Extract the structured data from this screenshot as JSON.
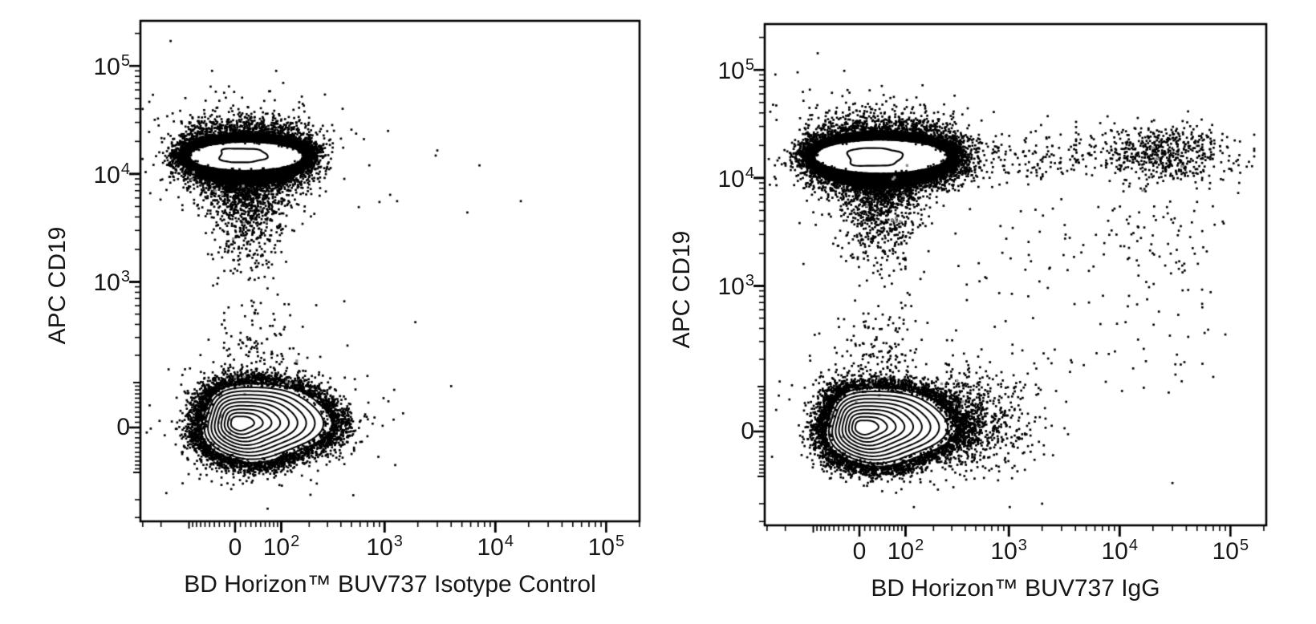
{
  "page": {
    "background": "#ffffff",
    "ink": "#000000",
    "gray_event_color": "#8f8f8f"
  },
  "chart_data": {
    "type": "scatter",
    "subtype": "flow-cytometry-contour-dot-plot",
    "axes_scale": {
      "transform": "asinh-biexponential",
      "cofactor": 90
    },
    "grid": "off",
    "legend": "none",
    "plots": [
      {
        "id": "isotype-control",
        "xlabel": "BD Horizon™ BUV737 Isotype Control",
        "ylabel": "APC CD19",
        "x_range": [
          -315,
          200000
        ],
        "y_range": [
          -330,
          265000
        ],
        "x_ticks": [
          {
            "value": 0,
            "label": "0"
          },
          {
            "value": 100,
            "label": "10",
            "sup": "2"
          },
          {
            "value": 1000,
            "label": "10",
            "sup": "3"
          },
          {
            "value": 10000,
            "label": "10",
            "sup": "4"
          },
          {
            "value": 100000,
            "label": "10",
            "sup": "5"
          }
        ],
        "y_ticks": [
          {
            "value": 100000,
            "label": "10",
            "sup": "5"
          },
          {
            "value": 10000,
            "label": "10",
            "sup": "4"
          },
          {
            "value": 1000,
            "label": "10",
            "sup": "3"
          },
          {
            "value": 0,
            "label": "0"
          }
        ],
        "populations": [
          {
            "name": "CD19-positive B cells, BUV737-isotype-negative",
            "kind": "dense-band",
            "median": [
              25,
              14500
            ],
            "t_center": [
              0.23,
              5.78
            ],
            "t_core_radii": [
              1.167,
              0.291
            ],
            "ring_n": 2400,
            "lip_n": 450,
            "halo_n": 520,
            "tail_n": 880,
            "top_n": 26,
            "right_ext_n": 0,
            "capsule": {
              "t_center": [
                0.15,
                5.8
              ],
              "t_radii": [
                0.483,
                0.145
              ]
            }
          },
          {
            "name": "CD19-negative lymphocytes, BUV737-negative",
            "kind": "contour-blob",
            "median": [
              45,
              9
            ],
            "contour_levels": 10,
            "t_center": [
              0.46,
              0.15
            ],
            "t_radii": {
              "left": 1.167,
              "right": 1.467,
              "top": 0.803,
              "bottom": 0.906
            },
            "inner_scale": 0.18,
            "inner_shift": [
              -0.34,
              -0.05
            ],
            "fringe_n": 2400,
            "edge_in_n": 150,
            "halo_n": 230,
            "above_n": 130,
            "right_tail_n": 0
          },
          {
            "name": "scattered events",
            "kind": "points",
            "points": [
              [
                -160,
                170000
              ],
              [
                -240,
                54000
              ],
              [
                650,
                21000
              ],
              [
                3000,
                16500
              ],
              [
                2900,
                14800
              ],
              [
                7200,
                12000
              ],
              [
                420,
                17500
              ],
              [
                430,
                9000
              ],
              [
                900,
                5500
              ],
              [
                1300,
                5600
              ],
              [
                17000,
                5600
              ],
              [
                5600,
                4400
              ],
              [
                4000,
                90
              ],
              [
                550,
                -30
              ],
              [
                700,
                120
              ],
              [
                980,
                60
              ],
              [
                1250,
                -80
              ],
              [
                460,
                250
              ],
              [
                520,
                -180
              ],
              [
                880,
                -60
              ],
              [
                430,
                660
              ],
              [
                1900,
                420
              ]
            ]
          }
        ],
        "gray_event_clusters": [
          {
            "t": [
              -0.3,
              0.05
            ],
            "sigma": 0.22,
            "n": 7
          },
          {
            "t": [
              0.12,
              0.9
            ],
            "sigma": 0.18,
            "n": 4
          },
          {
            "t": [
              1.2,
              1.05
            ],
            "sigma": 0.18,
            "n": 4
          },
          {
            "t": [
              0.2,
              4.5
            ],
            "sigma": 0.3,
            "n": 5
          },
          {
            "t": [
              -0.6,
              5.2
            ],
            "sigma": 0.28,
            "n": 4
          }
        ]
      },
      {
        "id": "igg",
        "xlabel": "BD Horizon™ BUV737 IgG",
        "ylabel": "APC CD19",
        "x_range": [
          -315,
          200000
        ],
        "y_range": [
          -330,
          265000
        ],
        "x_ticks": [
          {
            "value": 0,
            "label": "0"
          },
          {
            "value": 100,
            "label": "10",
            "sup": "2"
          },
          {
            "value": 1000,
            "label": "10",
            "sup": "3"
          },
          {
            "value": 10000,
            "label": "10",
            "sup": "4"
          },
          {
            "value": 100000,
            "label": "10",
            "sup": "5"
          }
        ],
        "y_ticks": [
          {
            "value": 100000,
            "label": "10",
            "sup": "5"
          },
          {
            "value": 10000,
            "label": "10",
            "sup": "4"
          },
          {
            "value": 1000,
            "label": "10",
            "sup": "3"
          },
          {
            "value": 0,
            "label": "0"
          }
        ],
        "populations": [
          {
            "name": "CD19-positive B cells, main cluster",
            "kind": "dense-band",
            "median": [
              40,
              15500
            ],
            "t_center": [
              0.45,
              5.86
            ],
            "t_core_radii": [
              1.367,
              0.342
            ],
            "ring_n": 2400,
            "lip_n": 450,
            "halo_n": 560,
            "tail_n": 930,
            "top_n": 40,
            "right_ext_n": 520,
            "capsule": {
              "t_center": [
                0.3,
                5.85
              ],
              "t_radii": [
                0.55,
                0.188
              ]
            }
          },
          {
            "name": "CD19-negative lymphocytes, BUV737-negative",
            "kind": "contour-blob",
            "median": [
              46,
              12
            ],
            "contour_levels": 10,
            "t_center": [
              0.46,
              0.15
            ],
            "t_radii": {
              "left": 1.167,
              "right": 1.467,
              "top": 0.803,
              "bottom": 0.906
            },
            "inner_scale": 0.18,
            "inner_shift": [
              -0.34,
              -0.05
            ],
            "fringe_n": 2400,
            "edge_in_n": 150,
            "halo_n": 230,
            "above_n": 150,
            "right_tail_n": 660
          },
          {
            "name": "CD19-positive, BUV737 IgG bright",
            "kind": "diffuse",
            "median": [
              24000,
              17500
            ],
            "n": 620,
            "below_n": 60,
            "t_mean": [
              6.28,
              5.92
            ],
            "t_sigma": [
              0.78,
              0.3
            ],
            "t_clip": [
              [
                4.5,
                8.2
              ],
              [
                4.8,
                7.05
              ]
            ]
          },
          {
            "name": "bridge events",
            "kind": "bridge",
            "n": 120,
            "t_x_range": [
              2.7,
              4.6
            ],
            "t_y_mean": 5.82,
            "t_y_sigma": 0.3
          },
          {
            "name": "sparse field",
            "kind": "field",
            "n": 110,
            "t_x_range": [
              2.0,
              7.3
            ],
            "t_y_range": [
              0.8,
              4.8
            ]
          },
          {
            "name": "scattered events",
            "kind": "points",
            "points": [
              [
                -150,
                95000
              ],
              [
                -60,
                42000
              ],
              [
                300,
                35000
              ],
              [
                2500,
                5200
              ],
              [
                9000,
                5200
              ],
              [
                15000,
                4800
              ],
              [
                1500,
                800
              ],
              [
                2600,
                250
              ],
              [
                6200,
                230
              ],
              [
                70000,
                130
              ],
              [
                30000,
                -120
              ],
              [
                90000,
                350
              ],
              [
                2000,
                -200
              ],
              [
                50000,
                6000
              ],
              [
                1600,
                -350
              ],
              [
                120000,
                9000
              ]
            ]
          }
        ],
        "gray_event_clusters": [
          {
            "t": [
              -0.45,
              0.1
            ],
            "sigma": 0.22,
            "n": 6
          },
          {
            "t": [
              0.3,
              0.95
            ],
            "sigma": 0.18,
            "n": 4
          },
          {
            "t": [
              2.1,
              0.8
            ],
            "sigma": 0.25,
            "n": 5
          },
          {
            "t": [
              0.5,
              4.6
            ],
            "sigma": 0.32,
            "n": 6
          },
          {
            "t": [
              1.0,
              5.5
            ],
            "sigma": 0.28,
            "n": 4
          },
          {
            "t": [
              5.85,
              5.75
            ],
            "sigma": 0.3,
            "n": 5
          }
        ]
      }
    ]
  }
}
